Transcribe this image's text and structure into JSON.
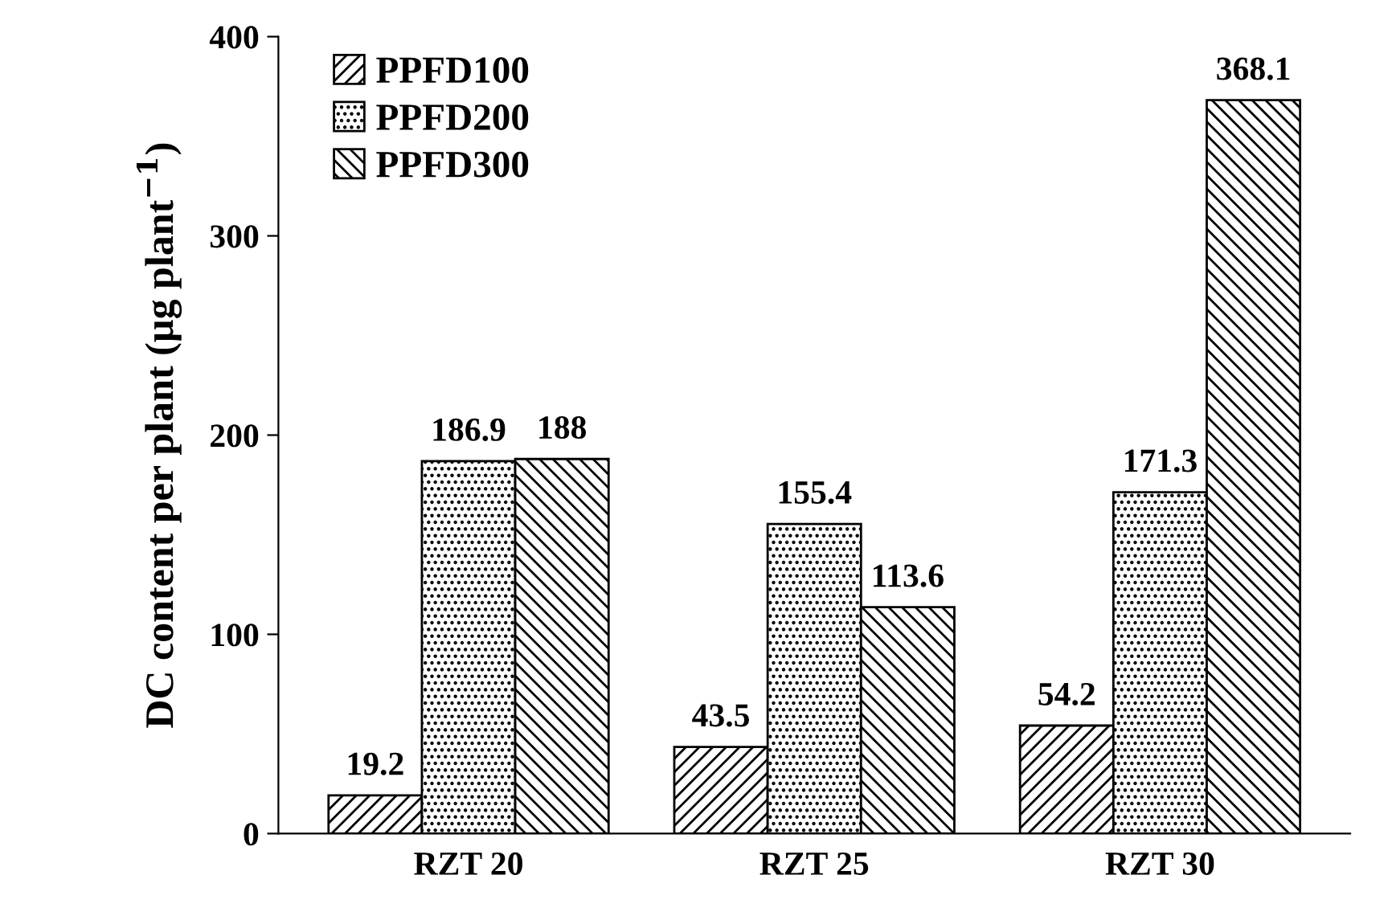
{
  "chart_data": {
    "type": "bar",
    "ylabel": "DC content per plant (µg plant$^{−1}$)",
    "categories": [
      "RZT 20",
      "RZT 25",
      "RZT 30"
    ],
    "series": [
      {
        "name": "PPFD100",
        "color": "#000000",
        "values": [
          19.2,
          43.5,
          54.2
        ]
      },
      {
        "name": "PPFD200",
        "color": "#000000",
        "values": [
          186.9,
          155.4,
          171.3
        ]
      },
      {
        "name": "PPFD300",
        "color": "#000000",
        "values": [
          188,
          113.6,
          368.1
        ]
      }
    ],
    "ylim": [
      0,
      400
    ],
    "yticks": [
      0,
      100,
      200,
      300,
      400
    ],
    "grid": false,
    "legend": "top left",
    "data_labels": true
  }
}
